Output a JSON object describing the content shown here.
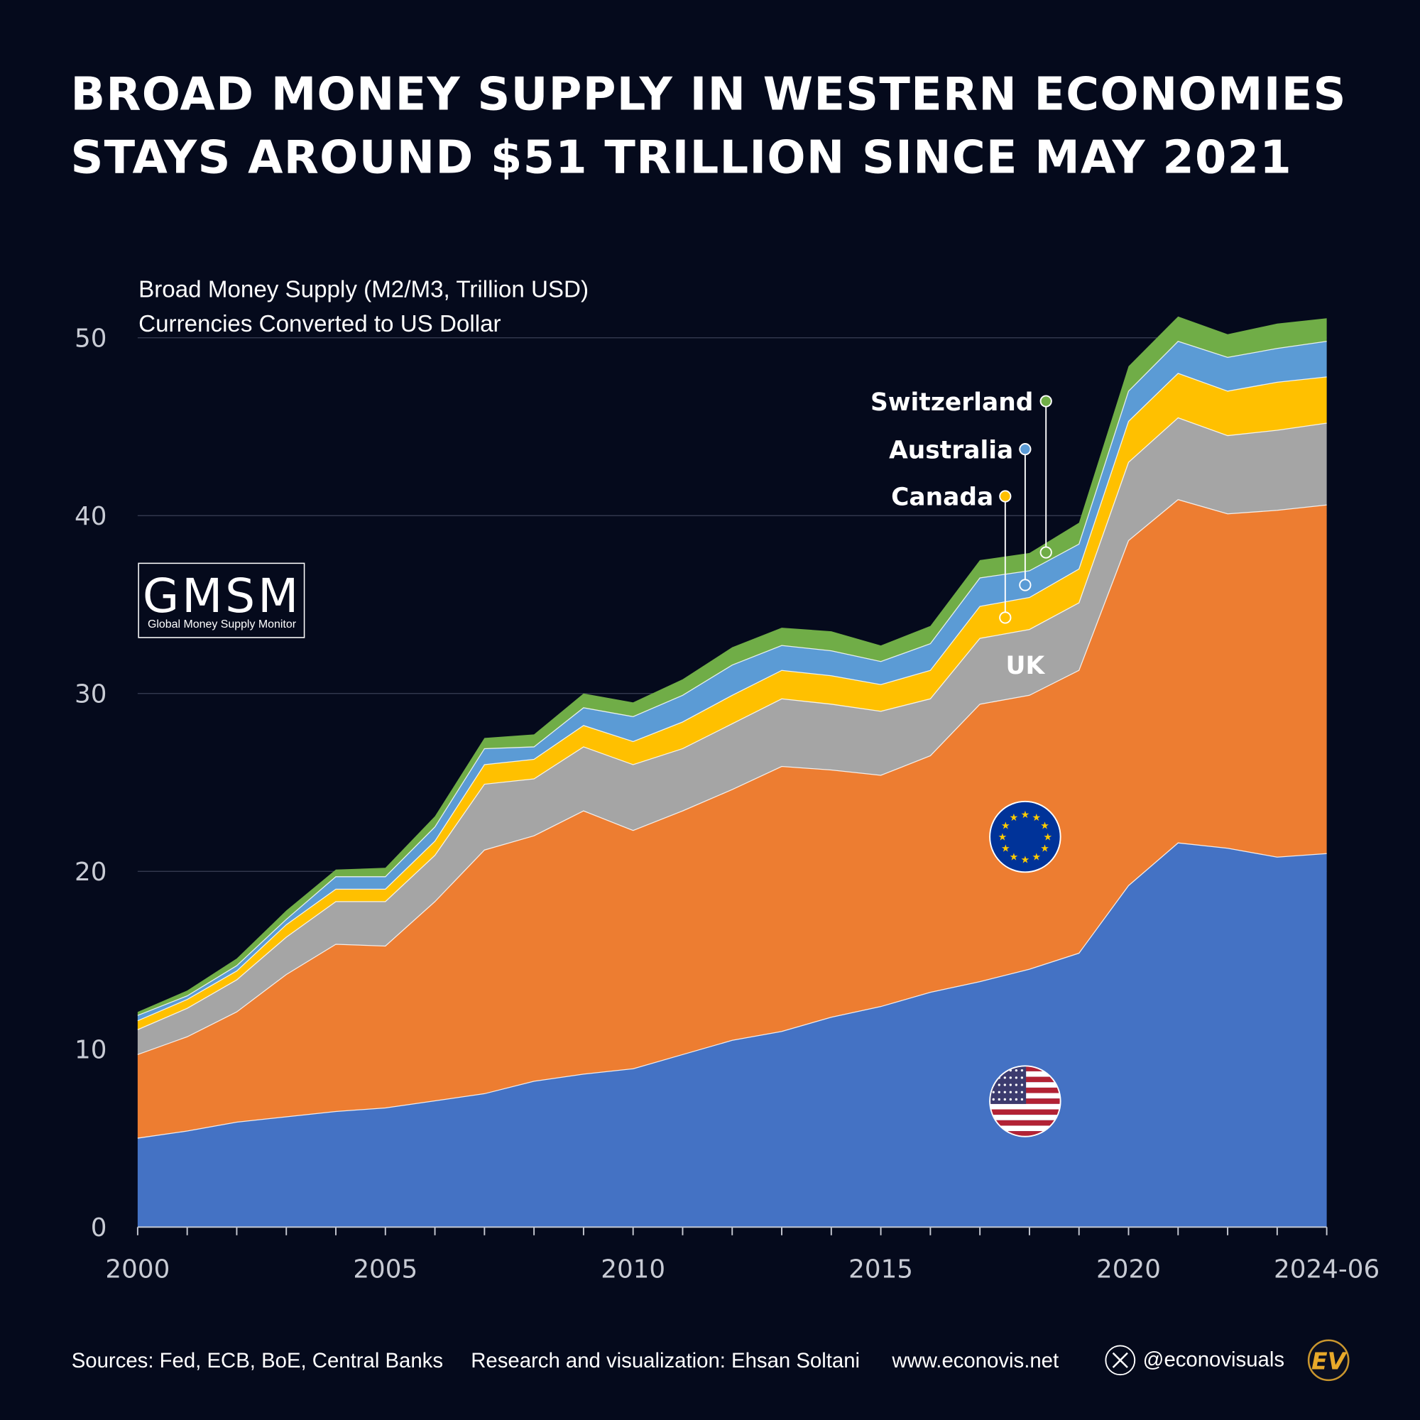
{
  "title_line1": "BROAD MONEY SUPPLY IN WESTERN ECONOMIES",
  "title_line2": "STAYS AROUND $51 TRILLION SINCE MAY 2021",
  "logo": {
    "main": "GMSM",
    "sub": "Global Money Supply Monitor"
  },
  "footer": {
    "sources": "Sources: Fed, ECB, BoE, Central Banks",
    "credit": "Research and visualization: Ehsan Soltani",
    "website": "www.econovis.net",
    "handle": "@econovisuals",
    "brand_logo": "EV"
  },
  "chart_data": {
    "type": "area",
    "stacked": true,
    "ylabel": "Broad Money Supply (M2/M3, Trillion USD)",
    "ylabel2": "Currencies Converted to US Dollar",
    "ylim": [
      0,
      52
    ],
    "yticks": [
      0,
      10,
      20,
      30,
      40,
      50
    ],
    "xticks": [
      "2000",
      "2005",
      "2010",
      "2015",
      "2020",
      "2024-06"
    ],
    "grid": "horizontal",
    "x": [
      2000,
      2001,
      2002,
      2003,
      2004,
      2005,
      2006,
      2007,
      2008,
      2009,
      2010,
      2011,
      2012,
      2013,
      2014,
      2015,
      2016,
      2017,
      2018,
      2019,
      2020,
      2021,
      2022,
      2023,
      "2024-06"
    ],
    "series": [
      {
        "name": "US",
        "color": "#4472c4",
        "label_type": "flag-us",
        "values": [
          5.0,
          5.4,
          5.9,
          6.2,
          6.5,
          6.7,
          7.1,
          7.5,
          8.2,
          8.6,
          8.9,
          9.7,
          10.5,
          11.0,
          11.8,
          12.4,
          13.2,
          13.8,
          14.5,
          15.4,
          19.2,
          21.6,
          21.3,
          20.8,
          21.0
        ]
      },
      {
        "name": "Eurozone",
        "color": "#ed7d31",
        "label_type": "flag-eu",
        "values": [
          4.7,
          5.3,
          6.2,
          8.0,
          9.4,
          9.1,
          11.2,
          13.7,
          13.8,
          14.8,
          13.4,
          13.7,
          14.1,
          14.9,
          13.9,
          13.0,
          13.3,
          15.6,
          15.4,
          15.9,
          19.4,
          19.3,
          18.8,
          19.5,
          19.6
        ]
      },
      {
        "name": "UK",
        "color": "#a5a5a5",
        "values": [
          1.4,
          1.6,
          1.8,
          2.1,
          2.4,
          2.5,
          2.6,
          3.7,
          3.2,
          3.6,
          3.7,
          3.5,
          3.7,
          3.8,
          3.7,
          3.6,
          3.2,
          3.7,
          3.7,
          3.8,
          4.4,
          4.6,
          4.4,
          4.5,
          4.6
        ]
      },
      {
        "name": "Canada",
        "color": "#ffc000",
        "values": [
          0.5,
          0.5,
          0.5,
          0.7,
          0.7,
          0.7,
          0.8,
          1.1,
          1.1,
          1.2,
          1.3,
          1.5,
          1.6,
          1.6,
          1.6,
          1.5,
          1.6,
          1.8,
          1.8,
          1.9,
          2.3,
          2.5,
          2.5,
          2.7,
          2.6
        ]
      },
      {
        "name": "Australia",
        "color": "#5b9bd5",
        "values": [
          0.3,
          0.2,
          0.3,
          0.3,
          0.7,
          0.7,
          0.8,
          0.9,
          0.7,
          1.0,
          1.4,
          1.5,
          1.7,
          1.4,
          1.4,
          1.3,
          1.5,
          1.6,
          1.5,
          1.4,
          1.7,
          1.8,
          1.9,
          1.9,
          2.0
        ]
      },
      {
        "name": "Switzerland",
        "color": "#70ad47",
        "values": [
          0.2,
          0.3,
          0.4,
          0.5,
          0.4,
          0.5,
          0.6,
          0.6,
          0.7,
          0.8,
          0.8,
          0.9,
          1.0,
          1.0,
          1.1,
          0.9,
          1.0,
          1.0,
          1.0,
          1.2,
          1.4,
          1.4,
          1.3,
          1.4,
          1.3
        ]
      }
    ]
  }
}
